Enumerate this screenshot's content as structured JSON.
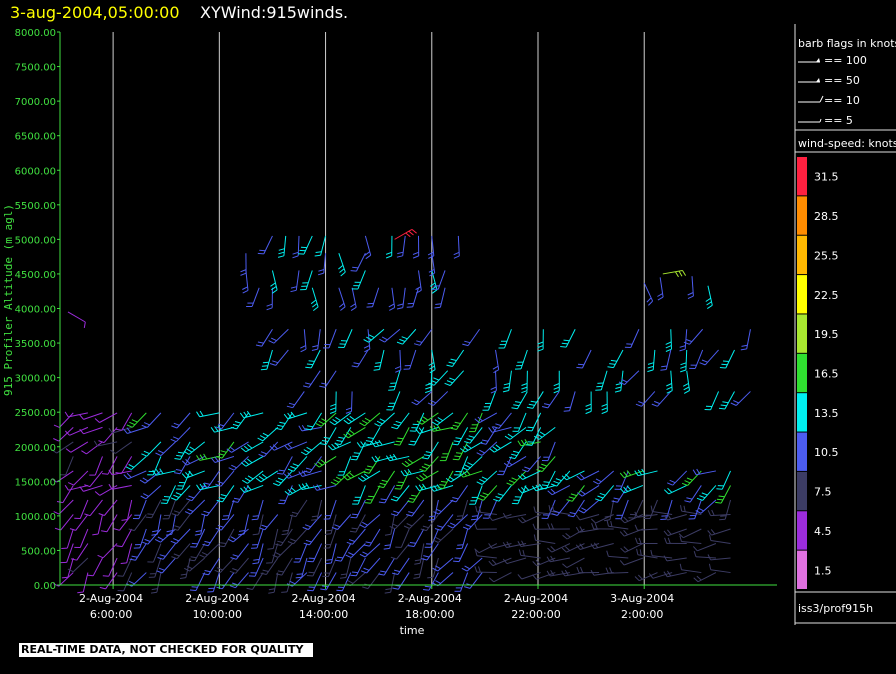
{
  "header": {
    "datetime": "3-aug-2004,05:00:00",
    "name": "XYWind:915winds."
  },
  "footer": {
    "warning": "REAL-TIME DATA, NOT CHECKED FOR QUALITY",
    "source_id": "iss3/prof915h"
  },
  "legend": {
    "barb_title": "barb flags in knots",
    "barbs": [
      {
        "label": "== 100",
        "kind": "flag"
      },
      {
        "label": "== 50",
        "kind": "flag"
      },
      {
        "label": "== 10",
        "kind": "long"
      },
      {
        "label": "== 5",
        "kind": "short"
      }
    ],
    "speed_title": "wind-speed: knots",
    "speed_scale": [
      {
        "label": "31.5",
        "color": "#ff2040"
      },
      {
        "label": "28.5",
        "color": "#ff8c00"
      },
      {
        "label": "25.5",
        "color": "#ffb800"
      },
      {
        "label": "22.5",
        "color": "#ffff00"
      },
      {
        "label": "19.5",
        "color": "#a8e830"
      },
      {
        "label": "16.5",
        "color": "#30e030"
      },
      {
        "label": "13.5",
        "color": "#00f0f0"
      },
      {
        "label": "10.5",
        "color": "#4c5cf0"
      },
      {
        "label": "7.5",
        "color": "#3c3c64"
      },
      {
        "label": "4.5",
        "color": "#9c2cdc"
      },
      {
        "label": "1.5",
        "color": "#e070e0"
      }
    ]
  },
  "chart_data": {
    "type": "wind-barb time-height",
    "xlabel": "time",
    "ylabel": "915 Profiler Altitude (m agl)",
    "ylim": [
      0,
      8000
    ],
    "y_ticks": [
      "0.00",
      "500.00",
      "1000.00",
      "1500.00",
      "2000.00",
      "2500.00",
      "3000.00",
      "3500.00",
      "4000.00",
      "4500.00",
      "5000.00",
      "5500.00",
      "6000.00",
      "6500.00",
      "7000.00",
      "7500.00",
      "8000.00"
    ],
    "x_range_hours": [
      4.0,
      31.0
    ],
    "x_ticks": [
      {
        "hour": 6,
        "date": "2-Aug-2004",
        "time": "6:00:00"
      },
      {
        "hour": 10,
        "date": "2-Aug-2004",
        "time": "10:00:00"
      },
      {
        "hour": 14,
        "date": "2-Aug-2004",
        "time": "14:00:00"
      },
      {
        "hour": 18,
        "date": "2-Aug-2004",
        "time": "18:00:00"
      },
      {
        "hour": 22,
        "date": "2-Aug-2004",
        "time": "22:00:00"
      },
      {
        "hour": 26,
        "date": "3-Aug-2004",
        "time": "2:00:00"
      }
    ],
    "vertical_gridlines": true,
    "speed_color_legend": "right"
  },
  "colors": {
    "axis": "#40e040",
    "title_datetime": "#ffff00",
    "title_name": "#ffffff",
    "grid": "#d0d0d0"
  }
}
